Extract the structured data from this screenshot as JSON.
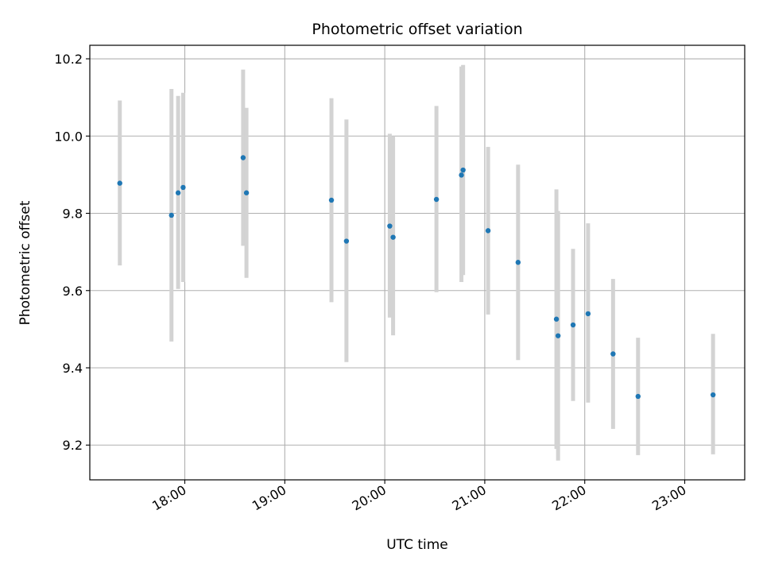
{
  "chart_data": {
    "type": "scatter",
    "title": "Photometric offset variation",
    "xlabel": "UTC time",
    "ylabel": "Photometric offset",
    "x_axis": {
      "kind": "time",
      "ticks": [
        "18:00",
        "19:00",
        "20:00",
        "21:00",
        "22:00",
        "23:00"
      ],
      "range": [
        "17:03",
        "23:36"
      ]
    },
    "y_axis": {
      "ticks": [
        "9.2",
        "9.4",
        "9.6",
        "9.8",
        "10.0",
        "10.2"
      ],
      "range": [
        9.11,
        10.235
      ]
    },
    "grid": true,
    "colors": {
      "marker": "#1f77b4",
      "errorbar": "#d3d3d3",
      "grid": "#b0b0b0"
    },
    "points": [
      {
        "time": "17:21",
        "y": 9.878,
        "err_low": 9.665,
        "err_high": 10.092
      },
      {
        "time": "17:52",
        "y": 9.795,
        "err_low": 9.468,
        "err_high": 10.122
      },
      {
        "time": "17:56",
        "y": 9.853,
        "err_low": 9.604,
        "err_high": 10.104
      },
      {
        "time": "17:59",
        "y": 9.867,
        "err_low": 9.622,
        "err_high": 10.112
      },
      {
        "time": "18:35",
        "y": 9.944,
        "err_low": 9.716,
        "err_high": 10.172
      },
      {
        "time": "18:37",
        "y": 9.853,
        "err_low": 9.633,
        "err_high": 10.073
      },
      {
        "time": "19:28",
        "y": 9.834,
        "err_low": 9.57,
        "err_high": 10.098
      },
      {
        "time": "19:37",
        "y": 9.728,
        "err_low": 9.415,
        "err_high": 10.043
      },
      {
        "time": "20:03",
        "y": 9.767,
        "err_low": 9.53,
        "err_high": 10.006
      },
      {
        "time": "20:05",
        "y": 9.738,
        "err_low": 9.484,
        "err_high": 10.0
      },
      {
        "time": "20:31",
        "y": 9.836,
        "err_low": 9.596,
        "err_high": 10.078
      },
      {
        "time": "20:46",
        "y": 9.899,
        "err_low": 9.622,
        "err_high": 10.18
      },
      {
        "time": "20:47",
        "y": 9.912,
        "err_low": 9.64,
        "err_high": 10.184
      },
      {
        "time": "21:02",
        "y": 9.755,
        "err_low": 9.538,
        "err_high": 9.972
      },
      {
        "time": "21:20",
        "y": 9.673,
        "err_low": 9.42,
        "err_high": 9.926
      },
      {
        "time": "21:43",
        "y": 9.526,
        "err_low": 9.19,
        "err_high": 9.862
      },
      {
        "time": "21:44",
        "y": 9.483,
        "err_low": 9.16,
        "err_high": 9.806
      },
      {
        "time": "21:53",
        "y": 9.511,
        "err_low": 9.314,
        "err_high": 9.708
      },
      {
        "time": "22:02",
        "y": 9.54,
        "err_low": 9.31,
        "err_high": 9.774
      },
      {
        "time": "22:17",
        "y": 9.436,
        "err_low": 9.242,
        "err_high": 9.63
      },
      {
        "time": "22:32",
        "y": 9.326,
        "err_low": 9.174,
        "err_high": 9.478
      },
      {
        "time": "23:17",
        "y": 9.33,
        "err_low": 9.176,
        "err_high": 9.488
      }
    ]
  }
}
